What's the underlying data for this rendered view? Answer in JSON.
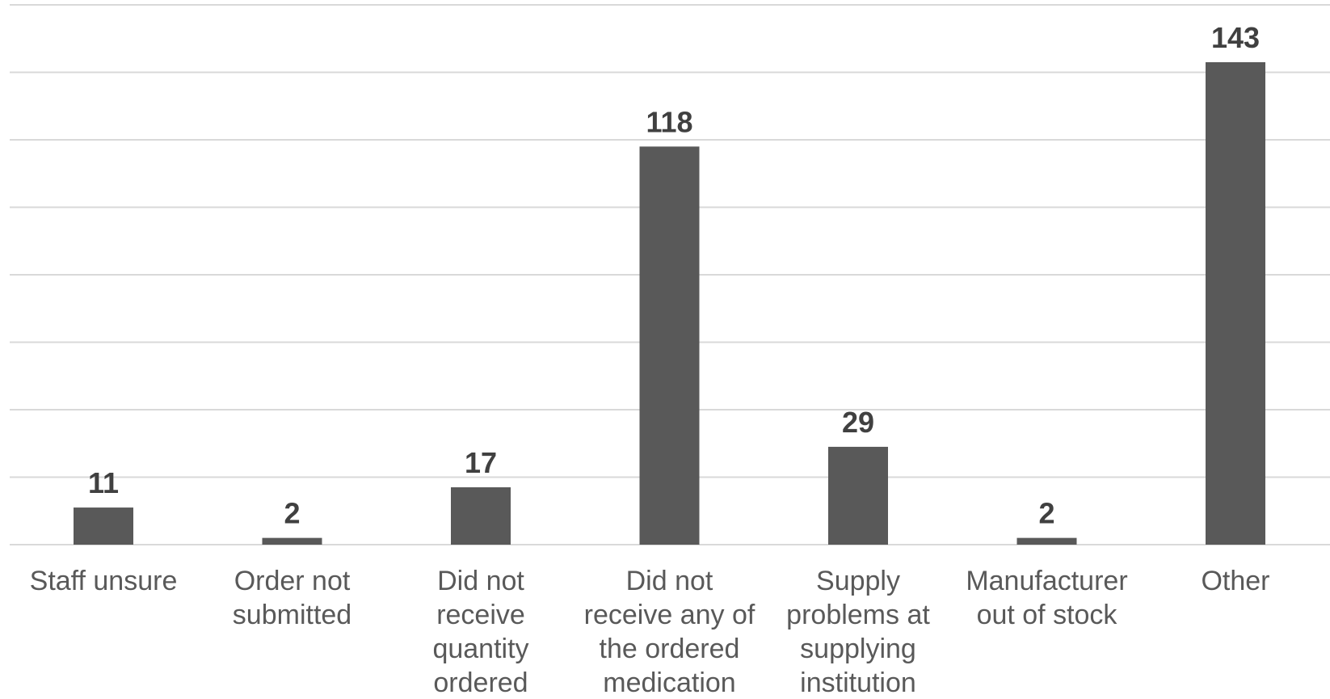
{
  "chart_data": {
    "type": "bar",
    "categories": [
      [
        "Staff unsure"
      ],
      [
        "Order not",
        "submitted"
      ],
      [
        "Did not",
        "receive",
        "quantity",
        "ordered"
      ],
      [
        "Did not",
        "receive any of",
        "the ordered",
        "medication"
      ],
      [
        "Supply",
        "problems at",
        "supplying",
        "institution"
      ],
      [
        "Manufacturer",
        "out of stock"
      ],
      [
        "Other"
      ]
    ],
    "values": [
      11,
      2,
      17,
      118,
      29,
      2,
      143
    ],
    "ylim": [
      0,
      160
    ],
    "grid_step": 20,
    "grid": true,
    "legend": false,
    "colors": {
      "bar": "#595959",
      "grid": "#d9d9d9",
      "label": "#404040",
      "tick": "#595959"
    }
  }
}
